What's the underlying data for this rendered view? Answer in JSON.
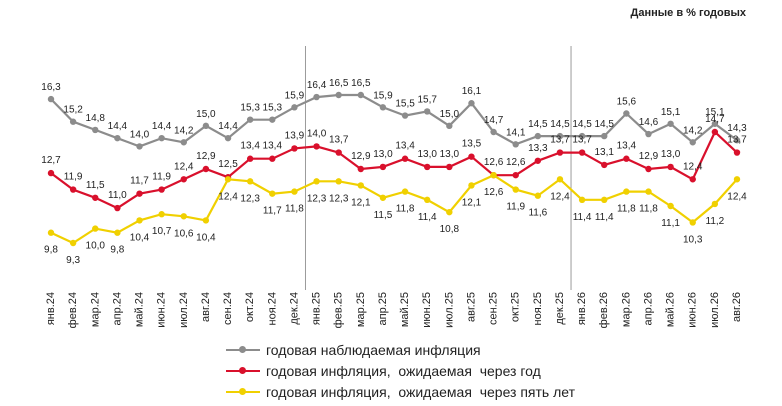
{
  "unit_note": "Данные в % годовых",
  "chart_data": {
    "type": "line",
    "categories": [
      "янв.24",
      "фев.24",
      "мар.24",
      "апр.24",
      "май.24",
      "июн.24",
      "июл.24",
      "авг.24",
      "сен.24",
      "окт.24",
      "ноя.24",
      "дек.24",
      "янв.25",
      "фев.25",
      "мар.25",
      "апр.25",
      "май.25",
      "июн.25",
      "июл.25",
      "авг.25",
      "сен.25",
      "окт.25",
      "ноя.25",
      "дек.25",
      "янв.26",
      "фев.26",
      "мар.26",
      "апр.26",
      "май.26",
      "июн.26",
      "июл.26",
      "авг.26"
    ],
    "series": [
      {
        "name": "годовая наблюдаемая инфляция",
        "color": "#8c8c8c",
        "values": [
          16.3,
          15.2,
          14.8,
          14.4,
          14.0,
          14.4,
          14.2,
          15.0,
          14.4,
          15.3,
          15.3,
          15.9,
          16.4,
          16.5,
          16.5,
          15.9,
          15.5,
          15.7,
          15.0,
          16.1,
          14.7,
          14.1,
          14.5,
          14.5,
          14.5,
          14.5,
          15.6,
          14.6,
          15.1,
          14.2,
          15.1,
          14.3
        ],
        "labels": [
          "16,3",
          "15,2",
          "14,8",
          "14,4",
          "14,0",
          "14,4",
          "14,2",
          "15,0",
          "14,4",
          "15,3",
          "15,3",
          "15,9",
          "16,4",
          "16,5",
          "16,5",
          "15,9",
          "15,5",
          "15,7",
          "15,0",
          "16,1",
          "14,7",
          "14,1",
          "14,5",
          "14,5",
          "14,5",
          "14,5",
          "15,6",
          "14,6",
          "15,1",
          "14,2",
          "15,1",
          "14,3"
        ]
      },
      {
        "name": "годовая инфляция,  ожидаемая  через год",
        "color": "#d9102c",
        "values": [
          12.7,
          11.9,
          11.5,
          11.0,
          11.7,
          11.9,
          12.4,
          12.9,
          12.5,
          13.4,
          13.4,
          13.9,
          14.0,
          13.7,
          12.9,
          13.0,
          13.4,
          13.0,
          13.0,
          13.5,
          12.6,
          12.6,
          13.3,
          13.7,
          13.7,
          13.1,
          13.4,
          12.9,
          13.0,
          12.4,
          14.7,
          13.7
        ],
        "labels": [
          "12,7",
          "11,9",
          "11,5",
          "11,0",
          "11,7",
          "11,9",
          "12,4",
          "12,9",
          "12,5",
          "13,4",
          "13,4",
          "13,9",
          "14,0",
          "13,7",
          "12,9",
          "13,0",
          "13,4",
          "13,0",
          "13,0",
          "13,5",
          "12,6",
          "12,6",
          "13,3",
          "13,7",
          "13,7",
          "13,1",
          "13,4",
          "12,9",
          "13,0",
          "12,4",
          "14,7",
          "13,7"
        ]
      },
      {
        "name": "годовая инфляция,  ожидаемая  через пять лет",
        "color": "#f0d000",
        "values": [
          9.8,
          9.3,
          10.0,
          9.8,
          10.4,
          10.7,
          10.6,
          10.4,
          12.4,
          12.3,
          11.7,
          11.8,
          12.3,
          12.3,
          12.1,
          11.5,
          11.8,
          11.4,
          10.8,
          12.1,
          12.6,
          11.9,
          11.6,
          12.4,
          11.4,
          11.4,
          11.8,
          11.8,
          11.1,
          10.3,
          11.2,
          12.4
        ],
        "labels": [
          "9,8",
          "9,3",
          "10,0",
          "9,8",
          "10,4",
          "10,7",
          "10,6",
          "10,4",
          "12,4",
          "12,3",
          "11,7",
          "11,8",
          "12,3",
          "12,3",
          "12,1",
          "11,5",
          "11,8",
          "11,4",
          "10,8",
          "12,1",
          "12,6",
          "11,9",
          "11,6",
          "12,4",
          "11,4",
          "11,4",
          "11,8",
          "11,8",
          "11,1",
          "10,3",
          "11,2",
          "12,4"
        ]
      }
    ],
    "year_separators_after": [
      "дек.24",
      "дек.25"
    ],
    "legend_position": "bottom",
    "grid": false
  }
}
